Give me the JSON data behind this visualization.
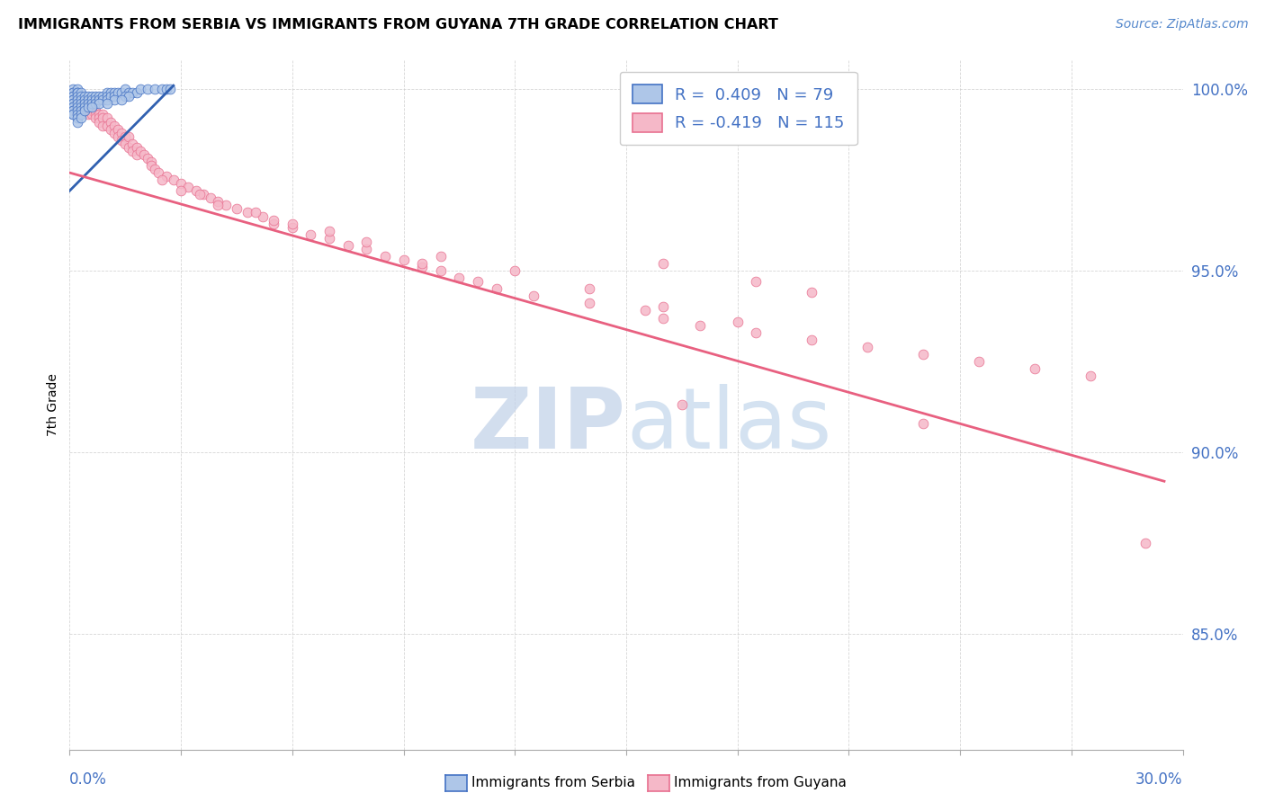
{
  "title": "IMMIGRANTS FROM SERBIA VS IMMIGRANTS FROM GUYANA 7TH GRADE CORRELATION CHART",
  "source": "Source: ZipAtlas.com",
  "ylabel": "7th Grade",
  "xlim": [
    0.0,
    0.3
  ],
  "ylim": [
    0.818,
    1.008
  ],
  "serbia_fill_color": "#aec6e8",
  "serbia_edge_color": "#4472c4",
  "guyana_fill_color": "#f5b8c8",
  "guyana_edge_color": "#e87090",
  "serbia_line_color": "#3060b0",
  "guyana_line_color": "#e86080",
  "serbia_R": "0.409",
  "serbia_N": "79",
  "guyana_R": "-0.419",
  "guyana_N": "115",
  "watermark_zip_color": "#c0d0e8",
  "watermark_atlas_color": "#b8d0e8",
  "ytick_values": [
    0.85,
    0.9,
    0.95,
    1.0
  ],
  "ytick_labels": [
    "85.0%",
    "90.0%",
    "95.0%",
    "100.0%"
  ],
  "serbia_line_x0": 0.0,
  "serbia_line_x1": 0.028,
  "serbia_line_y0": 0.972,
  "serbia_line_y1": 1.001,
  "guyana_line_x0": 0.0,
  "guyana_line_x1": 0.295,
  "guyana_line_y0": 0.977,
  "guyana_line_y1": 0.892
}
